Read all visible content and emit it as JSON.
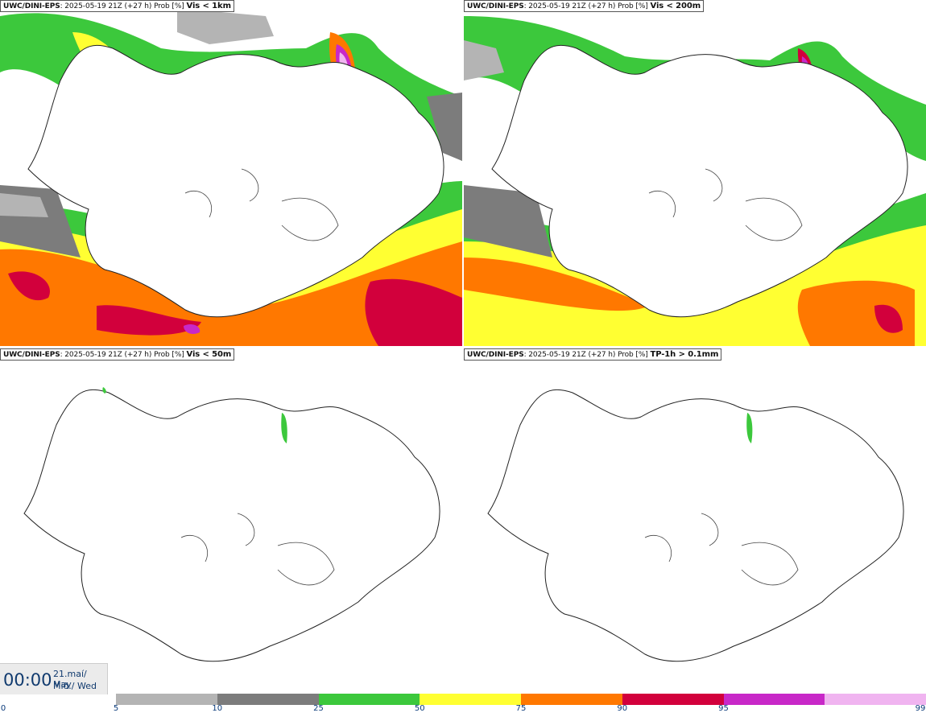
{
  "panels": [
    {
      "model": "UWC/DINI-EPS",
      "run": "2025-05-19 21Z (+27 h) Prob [%]",
      "threshold": "Vis < 1km"
    },
    {
      "model": "UWC/DINI-EPS",
      "run": "2025-05-19 21Z (+27 h) Prob [%]",
      "threshold": "Vis < 200m"
    },
    {
      "model": "UWC/DINI-EPS",
      "run": "2025-05-19 21Z (+27 h) Prob [%]",
      "threshold": "Vis < 50m"
    },
    {
      "model": "UWC/DINI-EPS",
      "run": "2025-05-19 21Z (+27 h) Prob [%]",
      "threshold": "TP-1h > 0.1mm"
    }
  ],
  "valid_time": {
    "time": "00:00",
    "date_line1": "21.maí/ May",
    "date_line2": "Mið./ Wed"
  },
  "legend": {
    "ticks": [
      "0",
      "5",
      "10",
      "25",
      "50",
      "75",
      "90",
      "95",
      "99"
    ],
    "colors": [
      "#b4b4b4",
      "#7c7c7c",
      "#3cc83c",
      "#ffff32",
      "#ff7800",
      "#d2003c",
      "#c828c8",
      "#f0b4f0"
    ]
  }
}
